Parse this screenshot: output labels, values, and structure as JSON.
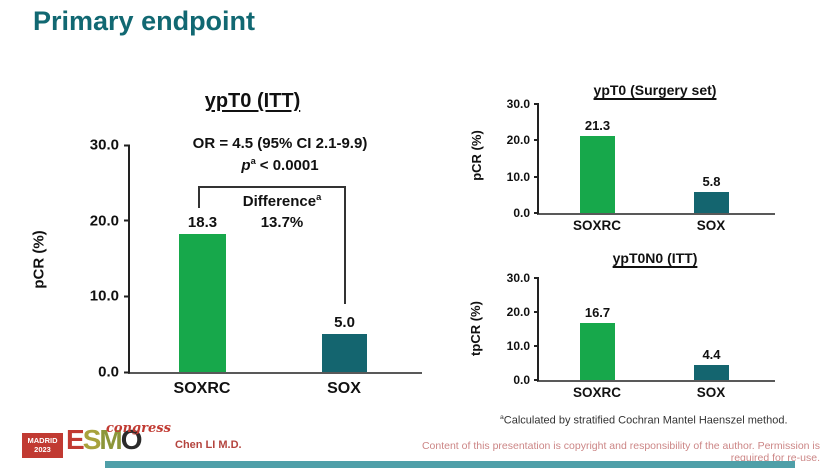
{
  "slide": {
    "title": "Primary endpoint",
    "author": "Chen LI M.D.",
    "footnote": {
      "sup": "a",
      "text": "Calculated by stratified Cochran Mantel Haenszel method."
    },
    "copyright": "Content of this presentation is copyright and responsibility of the author. Permission is required for re-use.",
    "logo": {
      "city": "MADRID",
      "year": "2023",
      "letters": [
        "E",
        "S",
        "M",
        "O"
      ],
      "event": "congress"
    }
  },
  "colors": {
    "title_teal": "#116872",
    "soxrc_green": "#17a84b",
    "sox_teal": "#14656f",
    "logo_red": "#c13a32",
    "copyright_pink": "#cc8686",
    "bottom_bar_teal": "#4f9fa8"
  },
  "chart_data": [
    {
      "type": "bar",
      "title": "ypT0 (ITT)",
      "categories": [
        "SOXRC",
        "SOX"
      ],
      "values": [
        18.3,
        5.0
      ],
      "labels": [
        "18.3",
        "5.0"
      ],
      "ylabel": "pCR (%)",
      "ylim": [
        0,
        30
      ],
      "yticks": [
        "30.0",
        "20.0",
        "10.0",
        "0.0"
      ],
      "bar_colors": [
        "#17a84b",
        "#14656f"
      ],
      "grid": false,
      "legend": false,
      "annotations": {
        "or": "OR = 4.5 (95% CI 2.1-9.9)",
        "p_var": "p",
        "p_sup": "a",
        "p_rest": "< 0.0001",
        "diff_label": "Difference",
        "diff_sup": "a",
        "diff_value": "13.7%"
      }
    },
    {
      "type": "bar",
      "title": "ypT0 (Surgery set)",
      "categories": [
        "SOXRC",
        "SOX"
      ],
      "values": [
        21.3,
        5.8
      ],
      "labels": [
        "21.3",
        "5.8"
      ],
      "ylabel": "pCR (%)",
      "ylim": [
        0,
        30
      ],
      "yticks": [
        "30.0",
        "20.0",
        "10.0",
        "0.0"
      ],
      "bar_colors": [
        "#17a84b",
        "#14656f"
      ],
      "grid": false,
      "legend": false
    },
    {
      "type": "bar",
      "title": "ypT0N0 (ITT)",
      "categories": [
        "SOXRC",
        "SOX"
      ],
      "values": [
        16.7,
        4.4
      ],
      "labels": [
        "16.7",
        "4.4"
      ],
      "ylabel": "tpCR (%)",
      "ylim": [
        0,
        30
      ],
      "yticks": [
        "30.0",
        "20.0",
        "10.0",
        "0.0"
      ],
      "bar_colors": [
        "#17a84b",
        "#14656f"
      ],
      "grid": false,
      "legend": false
    }
  ]
}
